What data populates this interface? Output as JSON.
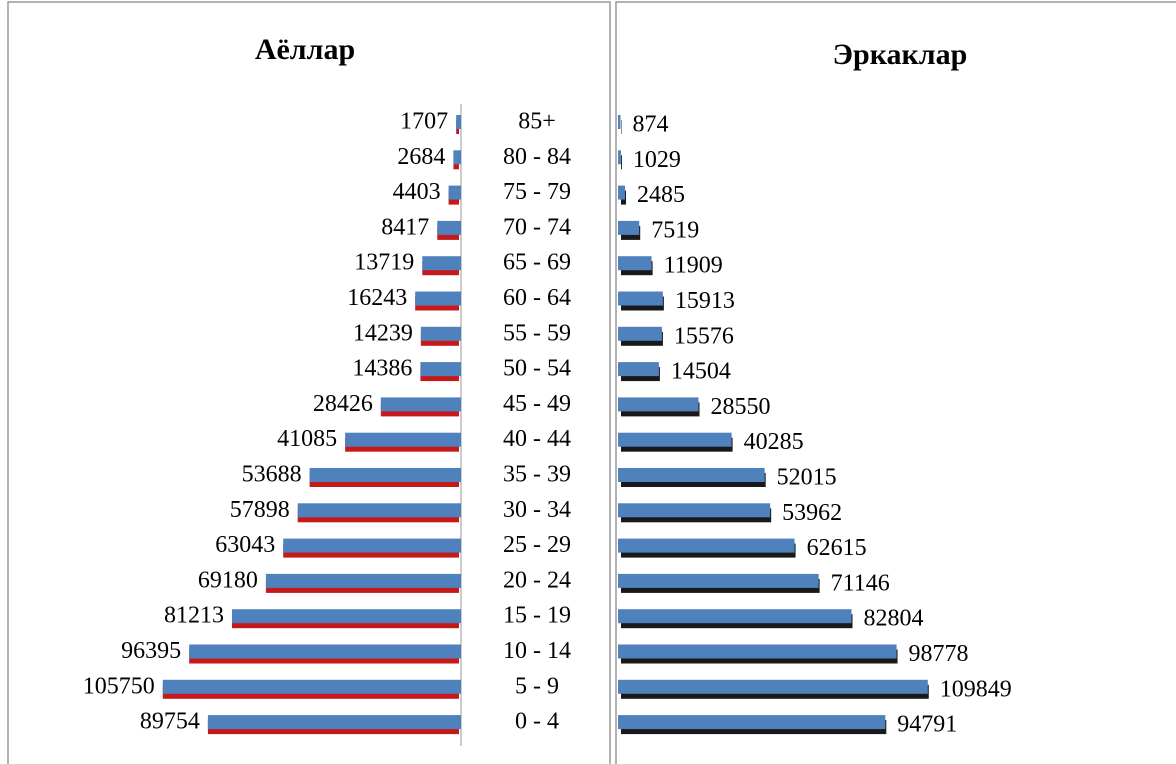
{
  "chart_data": {
    "type": "pyramid",
    "categories": [
      "85+",
      "80 - 84",
      "75 - 79",
      "70 - 74",
      "65 - 69",
      "60 - 64",
      "55 - 59",
      "50 - 54",
      "45 - 49",
      "40 - 44",
      "35 - 39",
      "30 - 34",
      "25 - 29",
      "20 - 24",
      "15 - 19",
      "10 - 14",
      "5 - 9",
      "0 - 4"
    ],
    "series": [
      {
        "name": "Аёллар",
        "color": "#4f81bd",
        "shadow_color": "#c00000",
        "side": "left",
        "values": [
          1707,
          2684,
          4403,
          8417,
          13719,
          16243,
          14239,
          14386,
          28426,
          41085,
          53688,
          57898,
          63043,
          69180,
          81213,
          96395,
          105750,
          89754
        ]
      },
      {
        "name": "Эркаклар",
        "color": "#4f81bd",
        "shadow_color": "#000000",
        "side": "right",
        "values": [
          874,
          1029,
          2485,
          7519,
          11909,
          15913,
          15576,
          14504,
          28550,
          40285,
          52015,
          53962,
          62615,
          71146,
          82804,
          98778,
          109849,
          94791
        ]
      }
    ]
  }
}
